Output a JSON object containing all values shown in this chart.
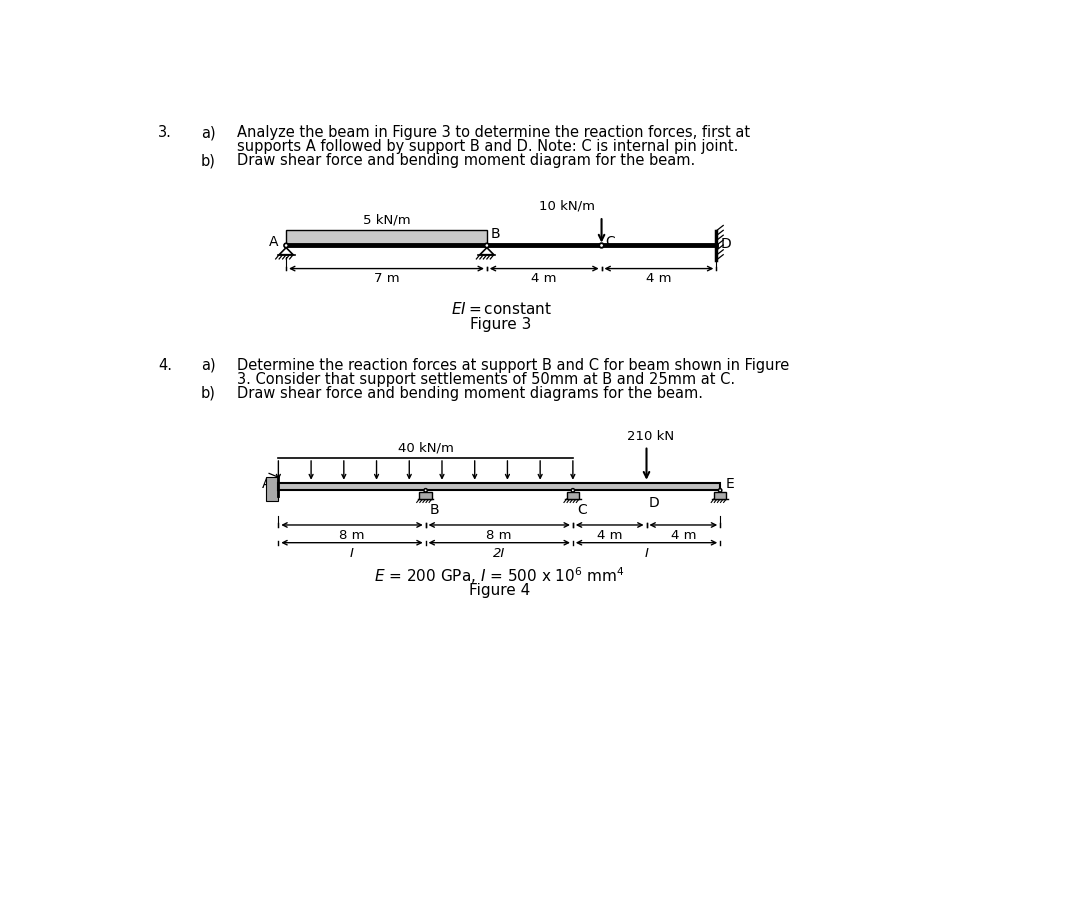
{
  "bg_color": "#ffffff",
  "fig_width": 10.8,
  "fig_height": 8.97,
  "q3_number": "3.",
  "q3a_label": "a)",
  "q3a_line1": "Analyze the beam in Figure 3 to determine the reaction forces, first at",
  "q3a_line2": "supports A followed by support B and D. Note: C is internal pin joint.",
  "q3b_label": "b)",
  "q3b_text": "Draw shear force and bending moment diagram for the beam.",
  "q4_number": "4.",
  "q4a_label": "a)",
  "q4a_line1": "Determine the reaction forces at support B and C for beam shown in Figure",
  "q4a_line2": "3. Consider that support settlements of 50mm at B and 25mm at C.",
  "q4b_label": "b)",
  "q4b_text": "Draw shear force and bending moment diagrams for the beam.",
  "fig3_caption": "Figure 3",
  "fig4_caption": "Figure 4",
  "fig3_load1": "5 kN/m",
  "fig3_load2": "10 kN/m",
  "fig3_dim1": "7 m",
  "fig3_dim2": "4 m",
  "fig3_dim3": "4 m",
  "fig4_load1": "40 kN/m",
  "fig4_load2": "210 kN",
  "fig4_dim1": "8 m",
  "fig4_dim2": "8 m",
  "fig4_dim3": "4 m",
  "fig4_dim4": "4 m",
  "fig4_I1": "I",
  "fig4_I2": "2I",
  "fig4_I3": "I",
  "beam_color": "#cccccc",
  "support_hatch_color": "#888888"
}
